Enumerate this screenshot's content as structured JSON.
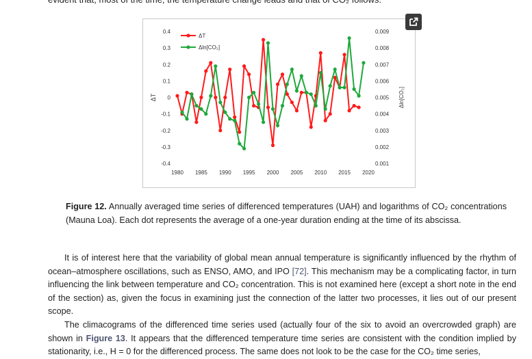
{
  "top_text": "evident that, most of the time, the temperature change leads and that of CO₂ follows.",
  "popout": {
    "icon": "external-link-icon"
  },
  "caption": {
    "label": "Figure 12.",
    "text": " Annually averaged time series of differenced temperatures (UAH) and logarithms of CO₂ concentrations (Mauna Loa). Each dot represents the average of a one-year duration ending at the time of its abscissa."
  },
  "paragraph1": {
    "text_before": "It is of interest here that the variability of global mean annual temperature is significantly influenced by the rhythm of ocean–atmosphere oscillations, such as ENSO, AMO, and IPO ",
    "ref": "[72]",
    "text_after": ". This mechanism may be a complicating factor, in turn influencing the link between temperature and CO₂ concentration. This is not examined here (except a short note in the end of the section) as, given the focus in examining just the connection of the latter two processes, it lies out of our present scope."
  },
  "paragraph2": {
    "text_before": "The climacograms of the differenced time series used (actually four of the six to avoid an overcrowded graph) are shown in ",
    "figref": "Figure 13",
    "text_after": ". It appears that the differenced temperature time series are consistent with the condition implied by stationarity, i.e., H = 0 for the differenced process. The same does not look to be the case for the CO₂ time series,"
  },
  "chart_data": {
    "type": "line",
    "ylabel_left": "ΔT",
    "ylabel_right": "Δln[CO₂]",
    "xlim": [
      1980,
      2020
    ],
    "ylim_left": [
      -0.4,
      0.4
    ],
    "ylim_right": [
      0.001,
      0.009
    ],
    "x_ticks": [
      "1980",
      "1985",
      "1990",
      "1995",
      "2000",
      "2005",
      "2010",
      "2015",
      "2020"
    ],
    "y_ticks_left": [
      "0.4",
      "0.3",
      "0.2",
      "0.1",
      "0",
      "-0.1",
      "-0.2",
      "-0.3",
      "-0.4"
    ],
    "y_ticks_right": [
      "0.009",
      "0.008",
      "0.007",
      "0.006",
      "0.005",
      "0.004",
      "0.003",
      "0.002",
      "0.001"
    ],
    "legend_position": "top-left",
    "series": [
      {
        "name": "ΔT",
        "color": "#ff1a1a",
        "axis": "left",
        "x": [
          1980,
          1981,
          1982,
          1983,
          1984,
          1985,
          1986,
          1987,
          1988,
          1989,
          1990,
          1991,
          1992,
          1993,
          1994,
          1995,
          1996,
          1997,
          1998,
          1999,
          2000,
          2001,
          2002,
          2003,
          2004,
          2005,
          2006,
          2007,
          2008,
          2009,
          2010,
          2011,
          2012,
          2013,
          2014,
          2015,
          2016,
          2017,
          2018,
          2019
        ],
        "values": [
          0.01,
          -0.1,
          0.03,
          0.02,
          -0.15,
          0.0,
          0.16,
          0.21,
          0.0,
          -0.2,
          0.0,
          0.17,
          -0.12,
          -0.21,
          0.19,
          0.14,
          -0.05,
          -0.06,
          0.35,
          -0.06,
          -0.29,
          0.08,
          0.14,
          0.02,
          -0.03,
          -0.08,
          0.03,
          0.03,
          -0.18,
          0.01,
          0.27,
          -0.14,
          -0.1,
          0.12,
          0.06,
          0.26,
          -0.08,
          -0.05,
          -0.06,
          null
        ]
      },
      {
        "name": "Δln[CO₂]",
        "color": "#1fa83c",
        "axis": "right",
        "x": [
          1981,
          1982,
          1983,
          1984,
          1985,
          1986,
          1987,
          1988,
          1989,
          1990,
          1991,
          1992,
          1993,
          1994,
          1995,
          1996,
          1997,
          1998,
          1999,
          2000,
          2001,
          2002,
          2003,
          2004,
          2005,
          2006,
          2007,
          2008,
          2009,
          2010,
          2011,
          2012,
          2013,
          2014,
          2015,
          2016,
          2017,
          2018,
          2019
        ],
        "values": [
          0.0041,
          0.0037,
          0.0052,
          0.0045,
          0.0043,
          0.004,
          0.0051,
          0.0069,
          0.0047,
          0.0041,
          0.0037,
          0.0036,
          0.0022,
          0.0019,
          0.005,
          0.0053,
          0.0046,
          0.0035,
          0.0083,
          0.0043,
          0.0033,
          0.0045,
          0.0058,
          0.0067,
          0.0054,
          0.0063,
          0.0053,
          0.0052,
          0.0045,
          0.0065,
          0.0043,
          0.0057,
          0.0067,
          0.0056,
          0.0056,
          0.0086,
          0.0055,
          0.0051,
          0.0071
        ]
      }
    ]
  }
}
